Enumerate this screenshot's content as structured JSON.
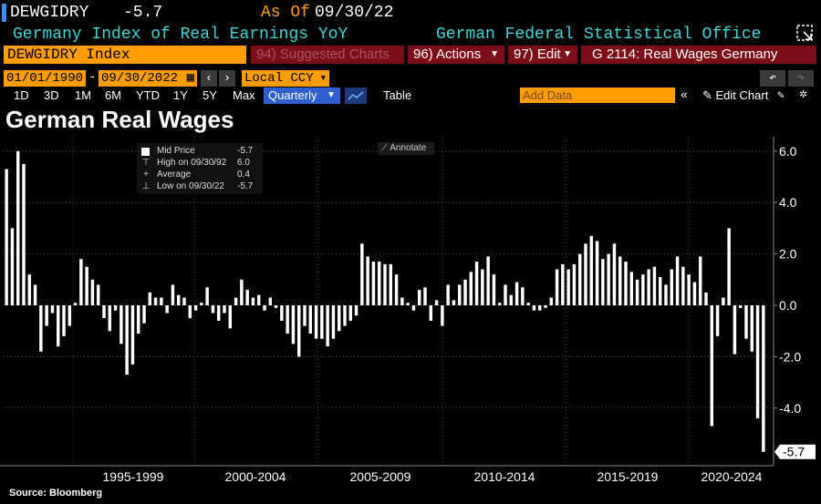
{
  "header": {
    "ticker": "DEWGIDRY",
    "last_value": "-5.7",
    "asof_label": "As Of",
    "asof_date": "09/30/22",
    "description": "Germany Index of Real Earnings YoY",
    "source": "German Federal Statistical Office"
  },
  "toolbar": {
    "index_field": "DEWGIDRY Index",
    "suggested": "94) Suggested Charts",
    "actions": "96) Actions",
    "edit": "97) Edit",
    "chart_id": "G 2114: Real Wages Germany",
    "date_start": "01/01/1990",
    "date_end": "09/30/2022",
    "date_dash": "-",
    "currency": "Local CCY",
    "ranges": [
      "1D",
      "3D",
      "1M",
      "6M",
      "YTD",
      "1Y",
      "5Y",
      "Max"
    ],
    "frequency": "Quarterly",
    "table_tab": "Table",
    "add_data_placeholder": "Add Data",
    "edit_chart": "Edit Chart"
  },
  "legend": {
    "mid_price_label": "Mid Price",
    "mid_price_value": "-5.7",
    "high_label": "High on 09/30/92",
    "high_value": "6.0",
    "average_label": "Average",
    "average_value": "0.4",
    "low_label": "Low on 09/30/22",
    "low_value": "-5.7"
  },
  "annotate_label": "Annotate",
  "source_note": "Source: Bloomberg",
  "colors": {
    "accent_orange": "#ff9c00",
    "header_cyan": "#3fd6d6",
    "button_red": "#7d0d17",
    "bar_white": "#ffffff"
  },
  "chart_data": {
    "type": "bar",
    "title": "German Real Wages",
    "frequency": "quarterly",
    "x_start": "1991-Q1",
    "x_end": "2022-Q3",
    "x_tick_labels": [
      "1995-1999",
      "2000-2004",
      "2005-2009",
      "2010-2014",
      "2015-2019",
      "2020-2024"
    ],
    "ylim": [
      -6,
      6.5
    ],
    "y_ticks": [
      -4.0,
      -2.0,
      0.0,
      2.0,
      4.0,
      6.0
    ],
    "y_tick_labels": [
      "-4.0",
      "-2.0",
      "0.0",
      "2.0",
      "4.0",
      "6.0"
    ],
    "last_value_label": "-5.7",
    "grid": true,
    "series": [
      {
        "values": [
          5.3,
          3.0,
          6.0,
          5.5,
          1.2,
          0.8,
          -1.8,
          -0.8,
          -0.3,
          -1.6,
          -1.2,
          -0.8,
          0.1,
          1.8,
          1.5,
          1.0,
          0.8,
          -0.5,
          -1.0,
          -0.2,
          -1.5,
          -2.7,
          -2.3,
          -1.1,
          -0.7,
          0.5,
          0.3,
          0.3,
          -0.3,
          0.8,
          0.4,
          0.3,
          -0.5,
          -0.2,
          0.1,
          0.7,
          -0.3,
          -0.6,
          -0.3,
          -0.9,
          0.3,
          1.0,
          0.6,
          0.3,
          0.4,
          -0.2,
          0.3,
          -0.1,
          -0.6,
          -1.1,
          -1.5,
          -2.0,
          -0.8,
          -1.1,
          -1.3,
          -1.3,
          -1.6,
          -1.3,
          -1.0,
          -0.8,
          -0.6,
          -0.4,
          2.4,
          1.9,
          1.7,
          1.7,
          1.6,
          1.6,
          1.2,
          0.3,
          0.1,
          -0.2,
          0.6,
          0.7,
          -0.6,
          0.2,
          -0.8,
          0.8,
          0.2,
          0.8,
          1.0,
          1.3,
          1.7,
          1.4,
          1.9,
          1.2,
          0.1,
          0.8,
          0.4,
          0.9,
          0.7,
          0.1,
          -0.2,
          -0.2,
          -0.1,
          0.3,
          1.4,
          1.6,
          1.4,
          1.6,
          2.0,
          2.4,
          2.7,
          2.5,
          1.8,
          2.0,
          2.4,
          1.9,
          1.7,
          1.3,
          1.0,
          1.2,
          1.4,
          1.5,
          1.1,
          0.8,
          1.4,
          1.9,
          1.5,
          1.2,
          0.9,
          1.9,
          0.5,
          -4.7,
          -1.2,
          0.3,
          3.0,
          -1.9,
          -0.1,
          -1.3,
          -1.8,
          -4.4,
          -5.7
        ]
      }
    ]
  }
}
